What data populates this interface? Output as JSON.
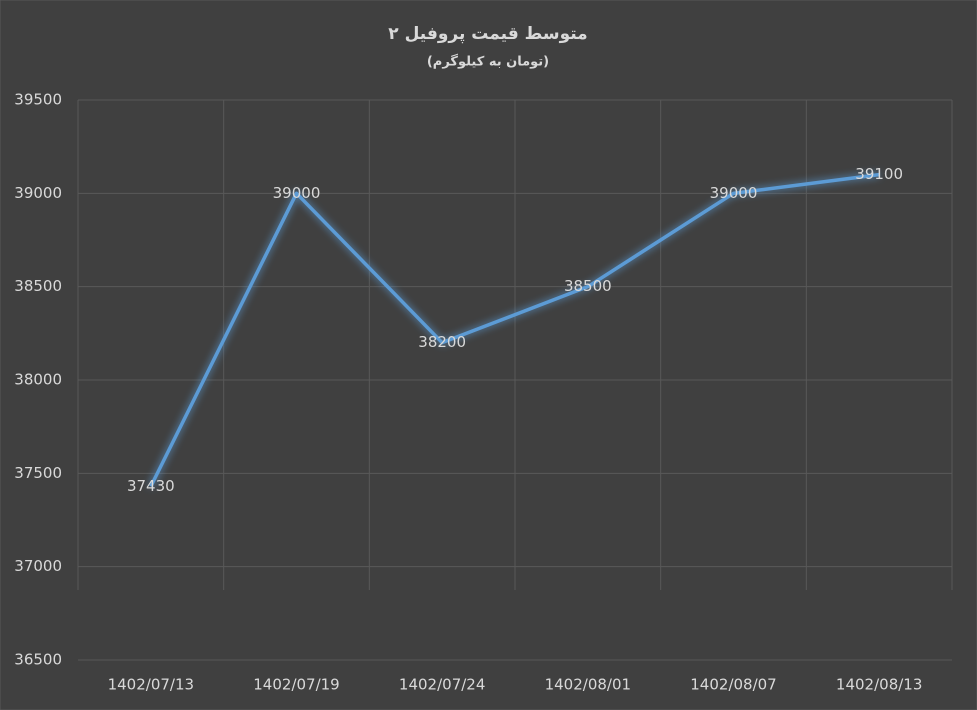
{
  "chart_data": {
    "type": "line",
    "title": "متوسط قیمت پروفیل ۲",
    "subtitle": "(تومان به کیلوگرم)",
    "categories": [
      "1402/07/13",
      "1402/07/19",
      "1402/07/24",
      "1402/08/01",
      "1402/08/07",
      "1402/08/13"
    ],
    "values": [
      37430,
      39000,
      38200,
      38500,
      39000,
      39100
    ],
    "color": "#5b9bd5",
    "ylim": [
      36500,
      39500
    ],
    "yticks": [
      36500,
      37000,
      37500,
      38000,
      38500,
      39000,
      39500
    ],
    "grid": true
  }
}
